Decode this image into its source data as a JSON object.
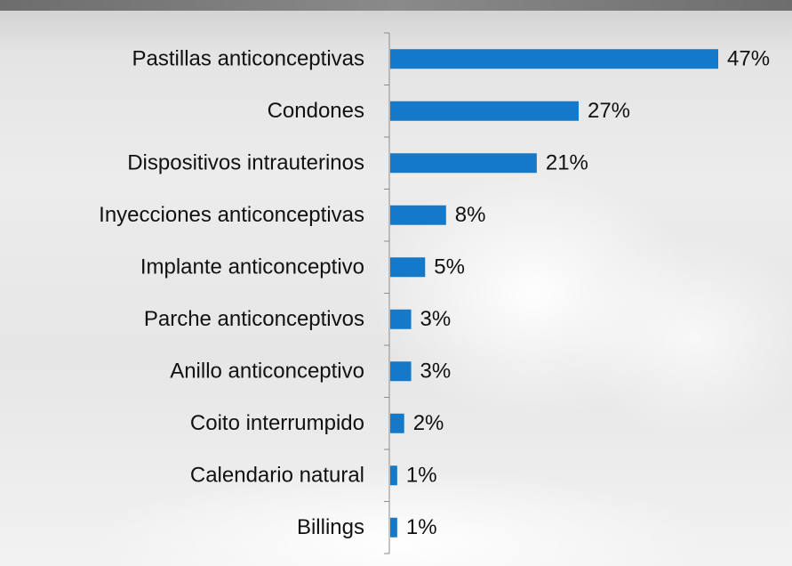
{
  "chart_data": {
    "type": "bar",
    "orientation": "horizontal",
    "categories": [
      "Pastillas anticonceptivas",
      "Condones",
      "Dispositivos intrauterinos",
      "Inyecciones anticonceptivas",
      "Implante anticonceptivo",
      "Parche anticonceptivos",
      "Anillo anticonceptivo",
      "Coito interrumpido",
      "Calendario natural",
      "Billings"
    ],
    "values": [
      47,
      27,
      21,
      8,
      5,
      3,
      3,
      2,
      1,
      1
    ],
    "value_labels": [
      "47%",
      "27%",
      "21%",
      "8%",
      "5%",
      "3%",
      "3%",
      "2%",
      "1%",
      "1%"
    ],
    "color": "#1479c9"
  }
}
